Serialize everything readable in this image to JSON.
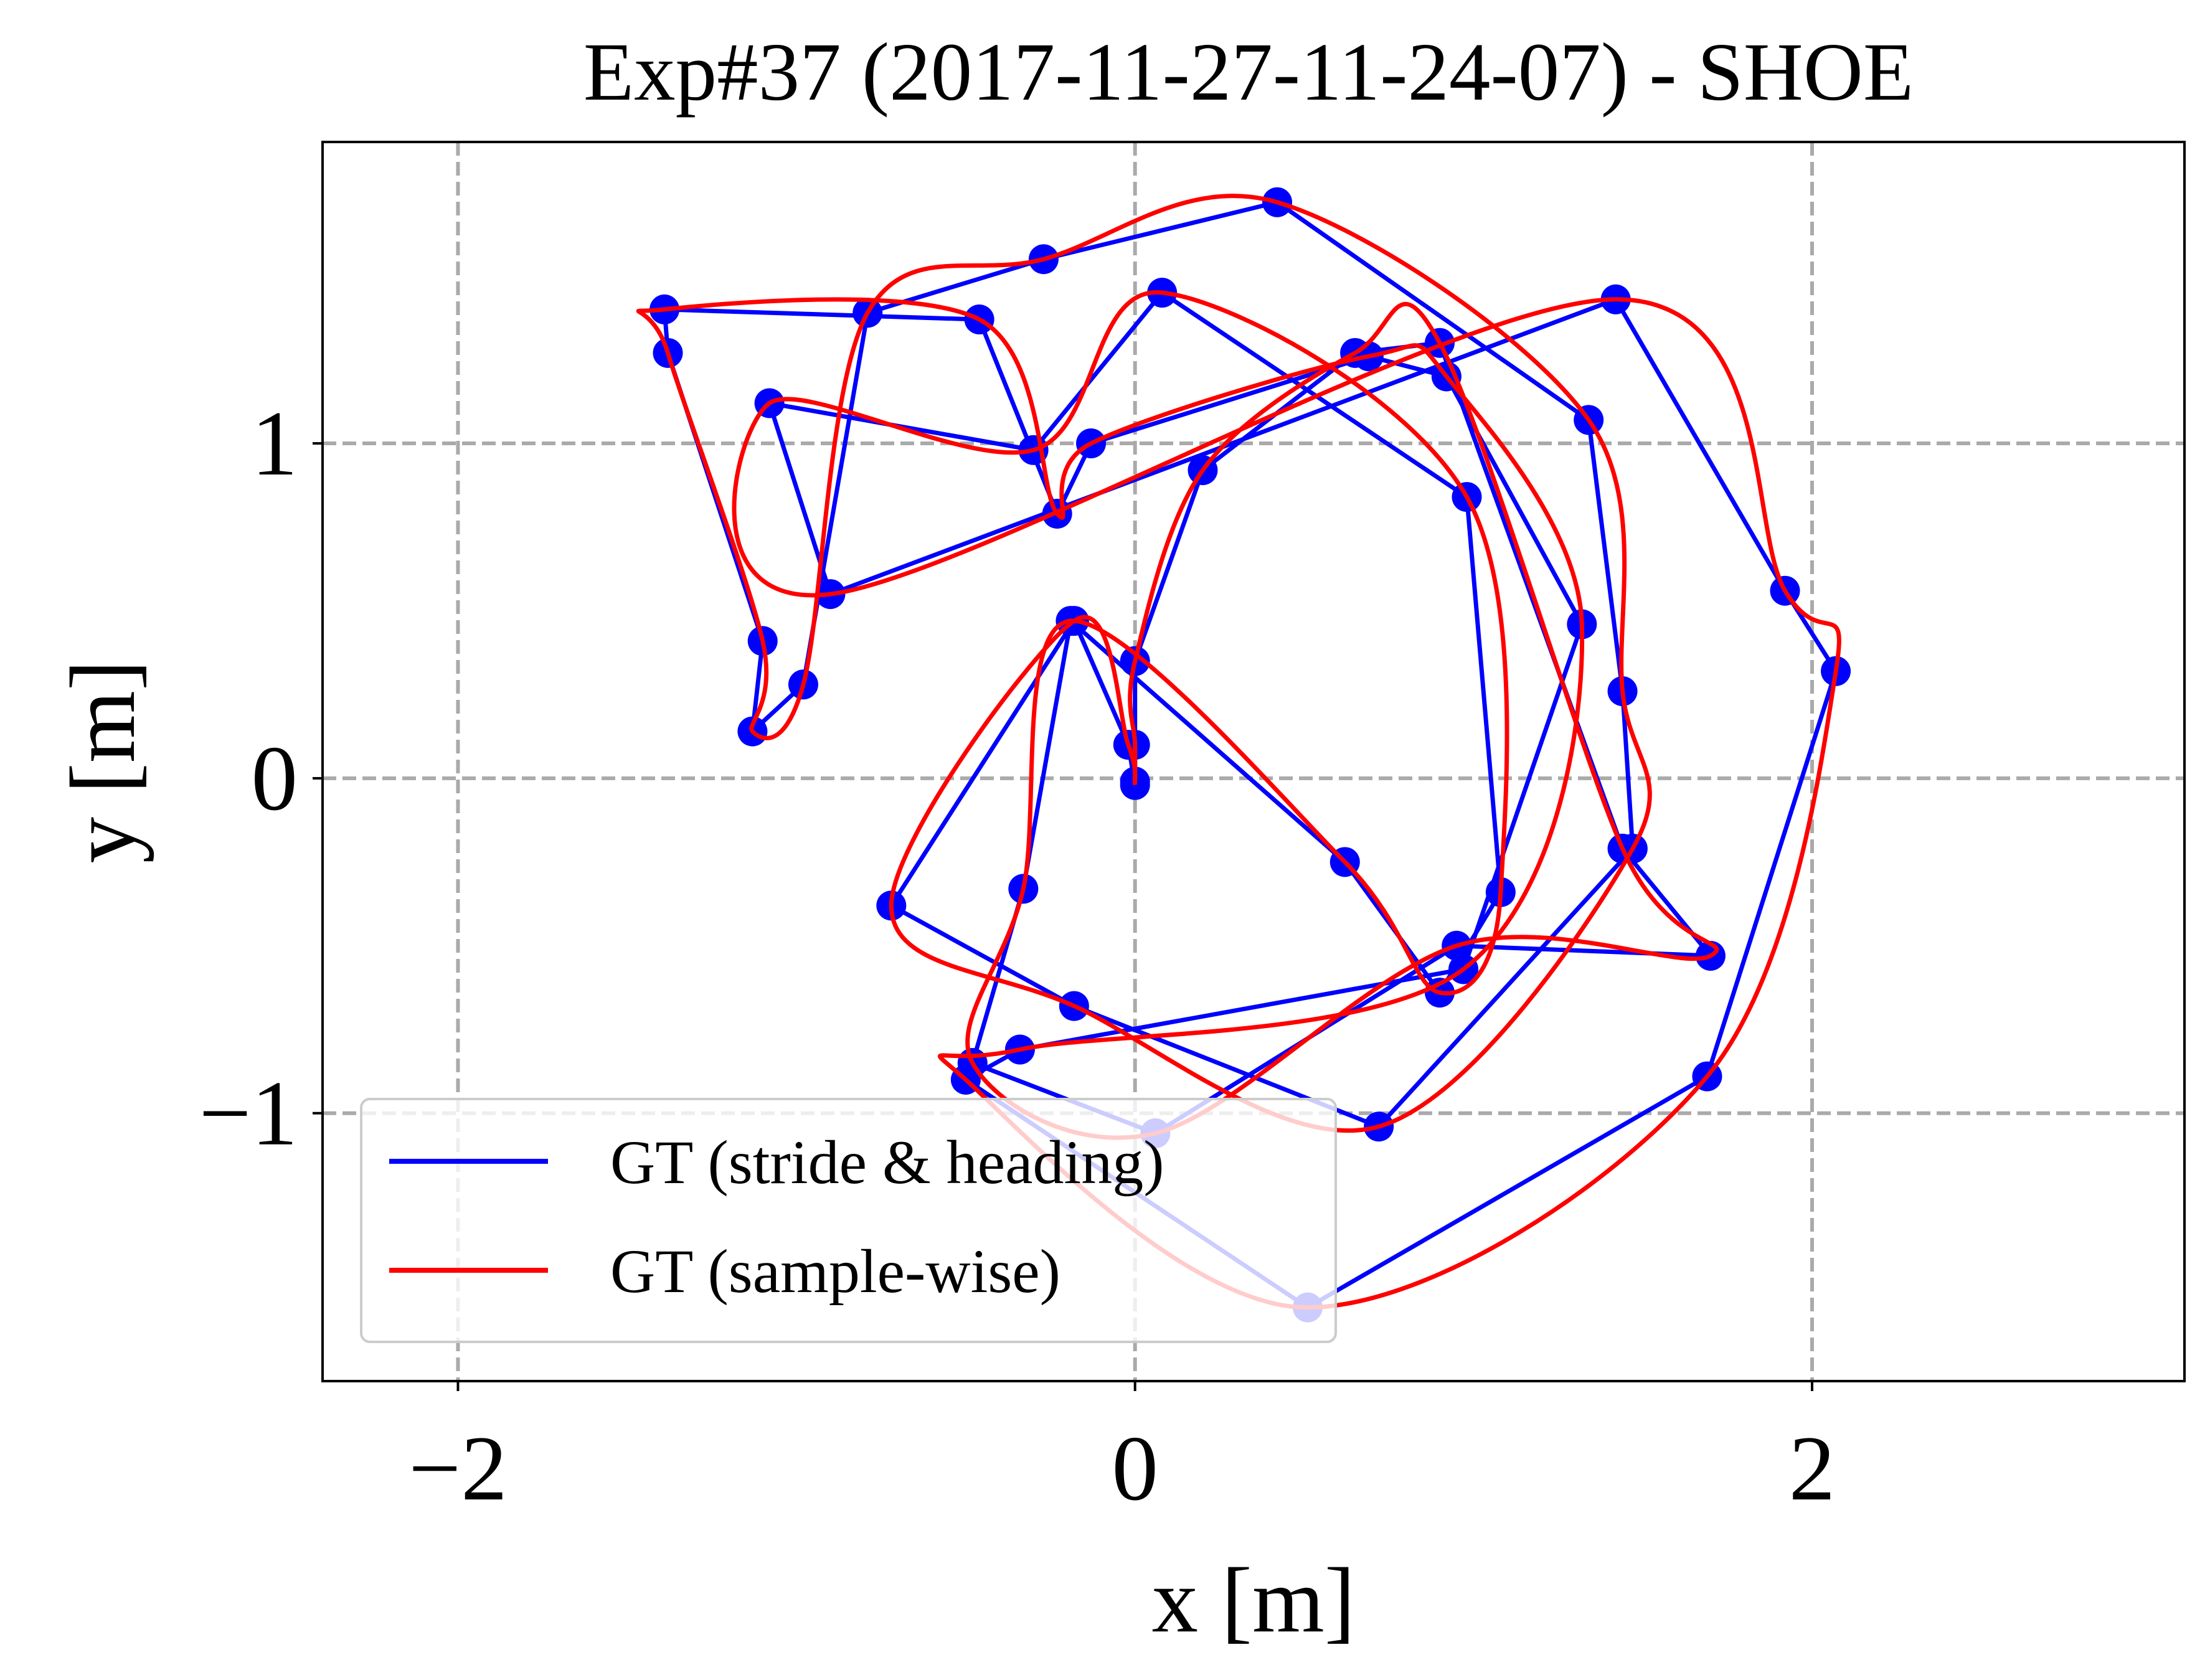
{
  "chart_data": {
    "type": "line",
    "title": "Exp#37 (2017-11-27-11-24-07) - SHOE",
    "xlabel": "x [m]",
    "ylabel": "y [m]",
    "xlim": [
      -2.4,
      3.1
    ],
    "ylim": [
      -1.8,
      1.9
    ],
    "xticks": [
      -2,
      0,
      2
    ],
    "yticks": [
      -1,
      0,
      1
    ],
    "xtick_labels": [
      "−2",
      "0",
      "2"
    ],
    "ytick_labels": [
      "−1",
      "0",
      "1"
    ],
    "grid": true,
    "legend_position": "lower-left",
    "series": [
      {
        "name": "GT (stride & heading)",
        "color": "#0000ff",
        "markers": true,
        "points": [
          [
            0.0,
            -0.02
          ],
          [
            -0.02,
            0.1
          ],
          [
            -0.18,
            0.47
          ],
          [
            -0.72,
            -0.38
          ],
          [
            -0.18,
            -0.68
          ],
          [
            0.72,
            -1.04
          ],
          [
            1.47,
            -0.21
          ],
          [
            1.44,
            0.26
          ],
          [
            1.34,
            1.07
          ],
          [
            0.42,
            1.72
          ],
          [
            -0.27,
            1.55
          ],
          [
            -0.79,
            1.39
          ],
          [
            -0.98,
            0.28
          ],
          [
            -1.13,
            0.14
          ],
          [
            -1.1,
            0.41
          ],
          [
            -1.38,
            1.27
          ],
          [
            -1.39,
            1.4
          ],
          [
            -0.46,
            1.37
          ],
          [
            -0.23,
            0.79
          ],
          [
            -0.13,
            1.0
          ],
          [
            0.69,
            1.26
          ],
          [
            0.92,
            1.2
          ],
          [
            1.32,
            0.46
          ],
          [
            0.97,
            -0.57
          ],
          [
            -0.34,
            -0.81
          ],
          [
            -0.5,
            -0.9
          ],
          [
            0.51,
            -1.58
          ],
          [
            1.69,
            -0.89
          ],
          [
            2.07,
            0.32
          ],
          [
            1.92,
            0.56
          ],
          [
            1.42,
            1.43
          ],
          [
            -0.9,
            0.55
          ],
          [
            -1.08,
            1.12
          ],
          [
            -0.3,
            0.98
          ],
          [
            0.08,
            1.45
          ],
          [
            0.98,
            0.84
          ],
          [
            1.08,
            -0.34
          ],
          [
            0.9,
            -0.64
          ],
          [
            0.62,
            -0.25
          ],
          [
            -0.19,
            0.47
          ],
          [
            -0.33,
            -0.33
          ],
          [
            -0.48,
            -0.85
          ],
          [
            0.06,
            -1.06
          ],
          [
            0.95,
            -0.5
          ],
          [
            1.7,
            -0.53
          ],
          [
            1.44,
            -0.21
          ],
          [
            0.9,
            1.3
          ],
          [
            0.65,
            1.27
          ],
          [
            0.2,
            0.92
          ],
          [
            0.0,
            0.35
          ],
          [
            0.0,
            0.1
          ],
          [
            0.0,
            -0.01
          ]
        ]
      },
      {
        "name": "GT (sample-wise)",
        "color": "#ff0000",
        "markers": false,
        "points": [
          [
            0.0,
            -0.02
          ],
          [
            -0.02,
            0.1
          ],
          [
            -0.18,
            0.47
          ],
          [
            -0.72,
            -0.38
          ],
          [
            -0.18,
            -0.68
          ],
          [
            0.72,
            -1.04
          ],
          [
            1.47,
            -0.21
          ],
          [
            1.44,
            0.26
          ],
          [
            1.34,
            1.07
          ],
          [
            0.42,
            1.72
          ],
          [
            -0.27,
            1.55
          ],
          [
            -0.79,
            1.39
          ],
          [
            -0.98,
            0.28
          ],
          [
            -1.13,
            0.14
          ],
          [
            -1.1,
            0.41
          ],
          [
            -1.38,
            1.27
          ],
          [
            -1.39,
            1.4
          ],
          [
            -0.46,
            1.37
          ],
          [
            -0.23,
            0.79
          ],
          [
            -0.13,
            1.0
          ],
          [
            0.69,
            1.26
          ],
          [
            0.92,
            1.2
          ],
          [
            1.32,
            0.46
          ],
          [
            0.97,
            -0.57
          ],
          [
            -0.34,
            -0.81
          ],
          [
            -0.5,
            -0.9
          ],
          [
            0.51,
            -1.58
          ],
          [
            1.69,
            -0.89
          ],
          [
            2.07,
            0.32
          ],
          [
            1.92,
            0.56
          ],
          [
            1.42,
            1.43
          ],
          [
            -0.9,
            0.55
          ],
          [
            -1.08,
            1.12
          ],
          [
            -0.3,
            0.98
          ],
          [
            0.08,
            1.45
          ],
          [
            0.98,
            0.84
          ],
          [
            1.08,
            -0.34
          ],
          [
            0.9,
            -0.64
          ],
          [
            0.62,
            -0.25
          ],
          [
            -0.19,
            0.47
          ],
          [
            -0.33,
            -0.33
          ],
          [
            -0.48,
            -0.85
          ],
          [
            0.06,
            -1.06
          ],
          [
            0.95,
            -0.5
          ],
          [
            1.7,
            -0.53
          ],
          [
            1.44,
            -0.21
          ],
          [
            0.9,
            1.3
          ],
          [
            0.65,
            1.27
          ],
          [
            0.2,
            0.92
          ],
          [
            0.0,
            0.35
          ],
          [
            0.0,
            0.1
          ],
          [
            0.0,
            -0.01
          ]
        ]
      }
    ]
  },
  "grid_color": "#aaaaaa"
}
